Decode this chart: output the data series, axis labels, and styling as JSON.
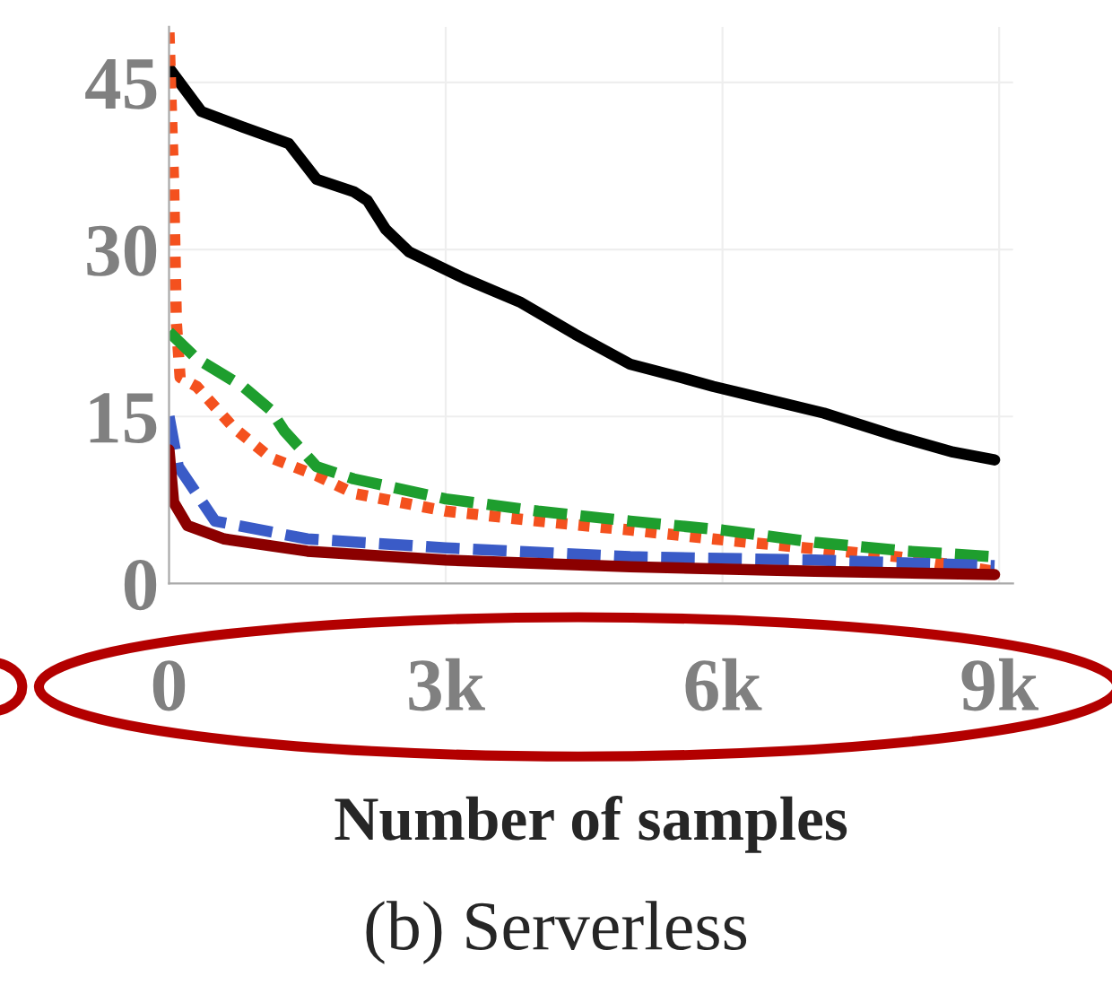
{
  "chart_data": {
    "type": "line",
    "title": "(b) Serverless",
    "xlabel": "Number of samples",
    "xlim": [
      0,
      9150
    ],
    "ylim": [
      0,
      50
    ],
    "xticks": [
      0,
      {
        "value": 3000,
        "label": "3k"
      },
      {
        "value": 6000,
        "label": "6k"
      },
      {
        "value": 9000,
        "label": "9k"
      }
    ],
    "yticks": [
      0,
      15,
      30,
      45
    ],
    "grid": true,
    "legend": false,
    "marker": "none",
    "series": [
      {
        "color": "#000000",
        "line_style": "solid",
        "x": [
          0,
          350,
          800,
          1300,
          1600,
          2000,
          2150,
          2350,
          2600,
          3200,
          3800,
          4400,
          5000,
          5550,
          5900,
          6300,
          7100,
          7900,
          8500,
          8950
        ],
        "values": [
          46.3,
          42.4,
          41,
          39.5,
          36.3,
          35.2,
          34.4,
          31.8,
          29.8,
          27.4,
          25.3,
          22.4,
          19.7,
          18.5,
          17.7,
          16.9,
          15.3,
          13.2,
          11.8,
          11.1
        ]
      },
      {
        "color": "#f4511e",
        "line_style": "dotted",
        "x": [
          0,
          50,
          80,
          120,
          300,
          700,
          1100,
          1600,
          2000,
          3000,
          4000,
          5000,
          5900,
          6900,
          7900,
          8950
        ],
        "values": [
          49.5,
          36,
          23.4,
          18.5,
          17.7,
          14,
          11.3,
          9.7,
          8.1,
          6.5,
          5.6,
          4.8,
          4,
          3.2,
          2.4,
          1.1
        ]
      },
      {
        "color": "#1e9e2e",
        "line_style": "dashed",
        "x": [
          0,
          300,
          800,
          1100,
          1250,
          1600,
          2000,
          3000,
          4000,
          5000,
          6000,
          7000,
          8000,
          8950
        ],
        "values": [
          22.6,
          20.2,
          17.7,
          15.6,
          13.7,
          10.5,
          9.4,
          7.6,
          6.5,
          5.6,
          4.8,
          3.7,
          2.9,
          2.4
        ]
      },
      {
        "color": "#3a5bc7",
        "line_style": "dashed",
        "x": [
          0,
          100,
          500,
          1500,
          3000,
          5000,
          7000,
          8950
        ],
        "values": [
          15,
          10.5,
          5.6,
          4,
          3.2,
          2.4,
          2.1,
          1.6
        ]
      },
      {
        "color": "#8b0000",
        "line_style": "solid",
        "x": [
          0,
          50,
          200,
          600,
          1500,
          3000,
          5000,
          7000,
          8950
        ],
        "values": [
          12,
          7.3,
          5.2,
          4,
          2.9,
          2.1,
          1.5,
          1.1,
          0.8
        ]
      }
    ]
  }
}
